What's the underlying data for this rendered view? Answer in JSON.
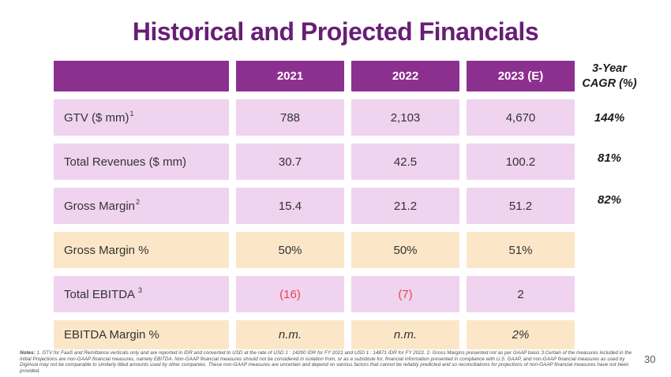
{
  "slide": {
    "title": "Historical and Projected Financials",
    "page_number": "30"
  },
  "table": {
    "col_headers": [
      "2021",
      "2022",
      "2023 (E)"
    ],
    "cagr_header_line1": "3-Year",
    "cagr_header_line2": "CAGR (%)",
    "rows": [
      {
        "label": "GTV ($ mm)",
        "sup": "1",
        "values": [
          "788",
          "2,103",
          "4,670"
        ],
        "cagr": "144%"
      },
      {
        "label": "Total Revenues ($ mm)",
        "sup": "",
        "values": [
          "30.7",
          "42.5",
          "100.2"
        ],
        "cagr": "81%"
      },
      {
        "label": "Gross Margin",
        "sup": "2",
        "values": [
          "15.4",
          "21.2",
          "51.2"
        ],
        "cagr": "82%"
      },
      {
        "label": "Gross Margin %",
        "sup": "",
        "values": [
          "50%",
          "50%",
          "51%"
        ],
        "cagr": ""
      },
      {
        "label": "Total EBITDA",
        "sup": "3",
        "values": [
          "(16)",
          "(7)",
          "2"
        ],
        "cagr": ""
      },
      {
        "label": "EBITDA Margin %",
        "sup": "",
        "values": [
          "n.m.",
          "n.m.",
          "2%"
        ],
        "cagr": ""
      }
    ]
  },
  "notes": {
    "label": "Notes:",
    "text": " 1. GTV for FaaS and Remittance verticals only and are reported in IDR and converted to USD at the rate of USD 1 : 14200 IDR for FY 2021 and USD 1 : 14871 IDR for FY 2022. 2. Gross Margins presented not as per GAAP basis  3.Certain of the measures included in the Initial Projections are non-GAAP financial measures, namely EBITDA. Non-GAAP financial measures should not be considered in isolation from, or as a substitute for, financial information presented in compliance with U.S. GAAP, and non-GAAP financial measures as used by DigiAsia may not be comparable to similarly titled amounts used by other companies. These non-GAAP measures are uncertain and depend on various factors that cannot be reliably predicted and so reconciliations for projections of non-GAAP financial measures have not been provided."
  },
  "colors": {
    "title_purple": "#671E75",
    "header_purple": "#8C3090",
    "row_pink": "#F0D3EF",
    "row_cream": "#FBE7C8",
    "negative_red": "#EB4450"
  }
}
